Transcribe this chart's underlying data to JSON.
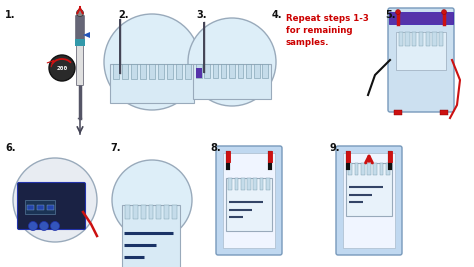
{
  "bg": "#ffffff",
  "step4_lines": [
    "Repeat steps 1-3",
    "for remaining",
    "samples."
  ],
  "step4_color": "#cc0000",
  "lbl": "#111111",
  "gel_fill": "#d8eaf5",
  "gel_edge": "#99aabb",
  "comb_fill": "#c5dcea",
  "comb_edge": "#7799aa",
  "circ_fill": "#ddeef8",
  "circ_edge": "#99aabb",
  "tank_fill": "#cce0f0",
  "tank_edge": "#7799bb",
  "purple": "#5533aa",
  "red": "#cc1111",
  "black": "#111111",
  "dark_gray": "#444455",
  "mid_gray": "#778899",
  "light_gray": "#cccccc",
  "pip_body": "#e0e0e0",
  "pip_dark": "#555566",
  "blue": "#2255bb",
  "power_dark": "#1a2244",
  "power_mid": "#2233aa",
  "water_fill": "#c0d8f0"
}
